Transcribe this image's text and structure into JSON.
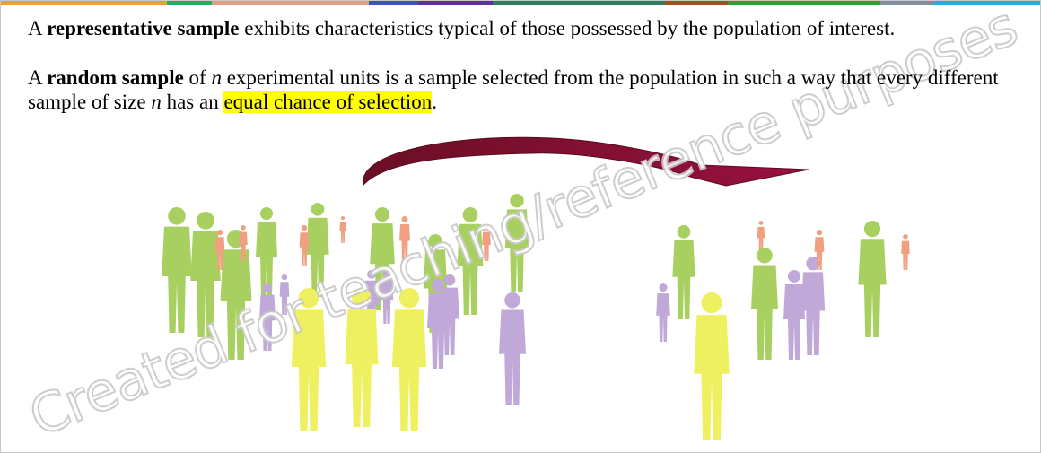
{
  "paragraphs": [
    {
      "parts": [
        "A ",
        "representative sample",
        " exhibits characteristics typical of those possessed by the population of interest."
      ]
    },
    {
      "parts": [
        "A ",
        "random sample",
        " of ",
        "n",
        " experimental units is a sample selected from the population in such a way that every different sample of size ",
        "n",
        " has an ",
        "equal chance of selection",
        "."
      ]
    }
  ],
  "watermark": "Created for teaching/reference purposes"
}
